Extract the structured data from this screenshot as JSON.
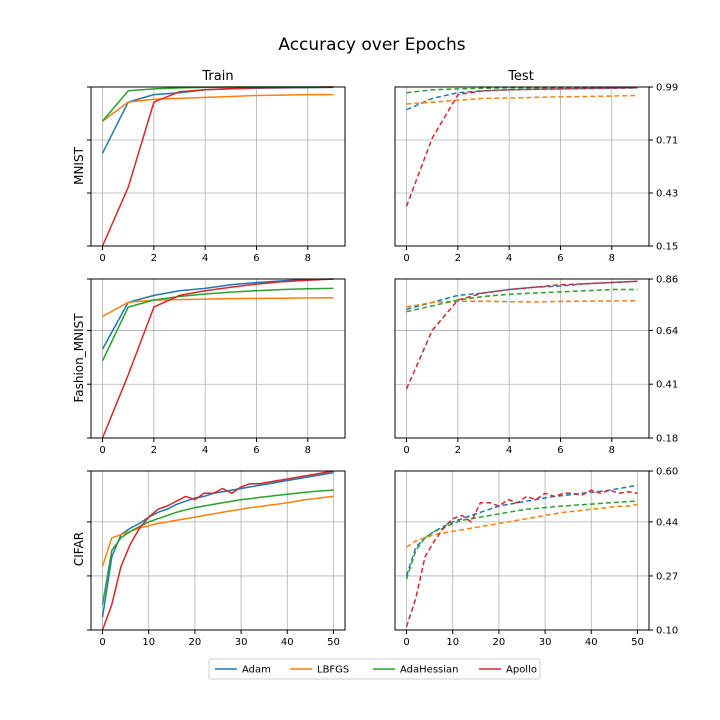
{
  "figure": {
    "title": "Accuracy over Epochs",
    "column_titles": [
      "Train",
      "Test"
    ],
    "row_labels": [
      "MNIST",
      "Fashion_MNIST",
      "CIFAR"
    ]
  },
  "legend": {
    "placement": "bottom-center",
    "entries": [
      {
        "name": "Adam",
        "color": "#1f77b4"
      },
      {
        "name": "LBFGS",
        "color": "#ff7f0e"
      },
      {
        "name": "AdaHessian",
        "color": "#2ca02c"
      },
      {
        "name": "Apollo",
        "color": "#d62728"
      }
    ]
  },
  "chart_data": [
    {
      "type": "line",
      "dataset": "MNIST",
      "split": "Train",
      "x": [
        0,
        1,
        2,
        3,
        4,
        5,
        6,
        7,
        8,
        9
      ],
      "xticks": [
        0,
        2,
        4,
        6,
        8
      ],
      "xlim": [
        -0.45,
        9.45
      ],
      "ylim": [
        0.15,
        0.99
      ],
      "yticks": [
        0.15,
        0.43,
        0.71,
        0.99
      ],
      "ytick_labels_shown": false,
      "grid": true,
      "line_style": "solid",
      "series": [
        {
          "name": "Adam",
          "values": [
            0.64,
            0.91,
            0.95,
            0.96,
            0.975,
            0.98,
            0.983,
            0.985,
            0.987,
            0.988
          ]
        },
        {
          "name": "LBFGS",
          "values": [
            0.81,
            0.91,
            0.925,
            0.93,
            0.935,
            0.94,
            0.945,
            0.947,
            0.95,
            0.95
          ]
        },
        {
          "name": "AdaHessian",
          "values": [
            0.81,
            0.97,
            0.98,
            0.985,
            0.988,
            0.99,
            0.99,
            0.99,
            0.99,
            0.99
          ]
        },
        {
          "name": "Apollo",
          "values": [
            0.15,
            0.46,
            0.91,
            0.965,
            0.975,
            0.982,
            0.985,
            0.987,
            0.988,
            0.99
          ]
        }
      ]
    },
    {
      "type": "line",
      "dataset": "MNIST",
      "split": "Test",
      "x": [
        0,
        1,
        2,
        3,
        4,
        5,
        6,
        7,
        8,
        9
      ],
      "xticks": [
        0,
        2,
        4,
        6,
        8
      ],
      "xlim": [
        -0.45,
        9.45
      ],
      "ylim": [
        0.15,
        0.99
      ],
      "yticks": [
        0.15,
        0.43,
        0.71,
        0.99
      ],
      "ytick_labels": [
        "0.15",
        "0.43",
        "0.71",
        "0.99"
      ],
      "ytick_side": "right",
      "grid": true,
      "line_style": "dashed",
      "series": [
        {
          "name": "Adam",
          "values": [
            0.87,
            0.93,
            0.96,
            0.97,
            0.975,
            0.978,
            0.98,
            0.982,
            0.983,
            0.985
          ]
        },
        {
          "name": "LBFGS",
          "values": [
            0.9,
            0.91,
            0.92,
            0.93,
            0.932,
            0.935,
            0.938,
            0.94,
            0.942,
            0.945
          ]
        },
        {
          "name": "AdaHessian",
          "values": [
            0.96,
            0.975,
            0.98,
            0.983,
            0.985,
            0.986,
            0.987,
            0.988,
            0.988,
            0.989
          ]
        },
        {
          "name": "Apollo",
          "values": [
            0.36,
            0.72,
            0.95,
            0.97,
            0.975,
            0.978,
            0.98,
            0.982,
            0.984,
            0.986
          ]
        }
      ]
    },
    {
      "type": "line",
      "dataset": "Fashion_MNIST",
      "split": "Train",
      "x": [
        0,
        1,
        2,
        3,
        4,
        5,
        6,
        7,
        8,
        9
      ],
      "xticks": [
        0,
        2,
        4,
        6,
        8
      ],
      "xlim": [
        -0.45,
        9.45
      ],
      "ylim": [
        0.18,
        0.86
      ],
      "yticks": [
        0.18,
        0.41,
        0.64,
        0.86
      ],
      "ytick_labels_shown": false,
      "grid": true,
      "line_style": "solid",
      "series": [
        {
          "name": "Adam",
          "values": [
            0.56,
            0.76,
            0.79,
            0.81,
            0.82,
            0.835,
            0.845,
            0.852,
            0.858,
            0.86
          ]
        },
        {
          "name": "LBFGS",
          "values": [
            0.7,
            0.76,
            0.77,
            0.772,
            0.774,
            0.776,
            0.777,
            0.778,
            0.779,
            0.78
          ]
        },
        {
          "name": "AdaHessian",
          "values": [
            0.51,
            0.74,
            0.77,
            0.785,
            0.796,
            0.804,
            0.81,
            0.815,
            0.818,
            0.82
          ]
        },
        {
          "name": "Apollo",
          "values": [
            0.18,
            0.45,
            0.74,
            0.79,
            0.81,
            0.825,
            0.838,
            0.848,
            0.855,
            0.86
          ]
        }
      ]
    },
    {
      "type": "line",
      "dataset": "Fashion_MNIST",
      "split": "Test",
      "x": [
        0,
        1,
        2,
        3,
        4,
        5,
        6,
        7,
        8,
        9
      ],
      "xticks": [
        0,
        2,
        4,
        6,
        8
      ],
      "xlim": [
        -0.45,
        9.45
      ],
      "ylim": [
        0.18,
        0.86
      ],
      "yticks": [
        0.18,
        0.41,
        0.64,
        0.86
      ],
      "ytick_labels": [
        "0.18",
        "0.41",
        "0.64",
        "0.86"
      ],
      "ytick_side": "right",
      "grid": true,
      "line_style": "dashed",
      "series": [
        {
          "name": "Adam",
          "values": [
            0.73,
            0.76,
            0.79,
            0.8,
            0.815,
            0.825,
            0.83,
            0.84,
            0.845,
            0.85
          ]
        },
        {
          "name": "LBFGS",
          "values": [
            0.74,
            0.76,
            0.765,
            0.765,
            0.763,
            0.762,
            0.764,
            0.765,
            0.766,
            0.767
          ]
        },
        {
          "name": "AdaHessian",
          "values": [
            0.72,
            0.745,
            0.77,
            0.785,
            0.795,
            0.8,
            0.805,
            0.81,
            0.815,
            0.815
          ]
        },
        {
          "name": "Apollo",
          "values": [
            0.39,
            0.64,
            0.77,
            0.8,
            0.815,
            0.825,
            0.835,
            0.84,
            0.845,
            0.85
          ]
        }
      ]
    },
    {
      "type": "line",
      "dataset": "CIFAR",
      "split": "Train",
      "x": [
        0,
        2,
        4,
        6,
        8,
        10,
        12,
        14,
        16,
        18,
        20,
        22,
        24,
        26,
        28,
        30,
        32,
        34,
        36,
        38,
        40,
        42,
        44,
        46,
        48,
        50
      ],
      "xticks": [
        0,
        10,
        20,
        30,
        40,
        50
      ],
      "xlim": [
        -2.5,
        52.5
      ],
      "ylim": [
        0.1,
        0.6
      ],
      "yticks": [
        0.1,
        0.27,
        0.44,
        0.6
      ],
      "ytick_labels_shown": false,
      "grid": true,
      "line_style": "solid",
      "series": [
        {
          "name": "Adam",
          "values": [
            0.14,
            0.33,
            0.4,
            0.42,
            0.435,
            0.455,
            0.47,
            0.48,
            0.495,
            0.505,
            0.515,
            0.52,
            0.53,
            0.535,
            0.54,
            0.545,
            0.55,
            0.555,
            0.56,
            0.565,
            0.57,
            0.575,
            0.58,
            0.585,
            0.59,
            0.595
          ]
        },
        {
          "name": "LBFGS",
          "values": [
            0.3,
            0.39,
            0.4,
            0.41,
            0.42,
            0.428,
            0.435,
            0.44,
            0.445,
            0.45,
            0.455,
            0.46,
            0.465,
            0.47,
            0.475,
            0.48,
            0.485,
            0.488,
            0.492,
            0.496,
            0.5,
            0.505,
            0.51,
            0.513,
            0.517,
            0.52
          ]
        },
        {
          "name": "AdaHessian",
          "values": [
            0.18,
            0.35,
            0.39,
            0.41,
            0.425,
            0.44,
            0.45,
            0.46,
            0.47,
            0.478,
            0.485,
            0.49,
            0.495,
            0.5,
            0.505,
            0.51,
            0.513,
            0.517,
            0.52,
            0.524,
            0.527,
            0.53,
            0.533,
            0.536,
            0.538,
            0.54
          ]
        },
        {
          "name": "Apollo",
          "values": [
            0.1,
            0.18,
            0.3,
            0.37,
            0.42,
            0.455,
            0.48,
            0.49,
            0.505,
            0.52,
            0.51,
            0.53,
            0.53,
            0.545,
            0.53,
            0.55,
            0.56,
            0.56,
            0.565,
            0.57,
            0.575,
            0.58,
            0.585,
            0.59,
            0.595,
            0.6
          ]
        }
      ]
    },
    {
      "type": "line",
      "dataset": "CIFAR",
      "split": "Test",
      "x": [
        0,
        2,
        4,
        6,
        8,
        10,
        12,
        14,
        16,
        18,
        20,
        22,
        24,
        26,
        28,
        30,
        32,
        34,
        36,
        38,
        40,
        42,
        44,
        46,
        48,
        50
      ],
      "xticks": [
        0,
        10,
        20,
        30,
        40,
        50
      ],
      "xlim": [
        -2.5,
        52.5
      ],
      "ylim": [
        0.1,
        0.6
      ],
      "yticks": [
        0.1,
        0.27,
        0.44,
        0.6
      ],
      "ytick_labels": [
        "0.10",
        "0.27",
        "0.44",
        "0.60"
      ],
      "ytick_side": "right",
      "grid": true,
      "line_style": "dashed",
      "series": [
        {
          "name": "Adam",
          "values": [
            0.27,
            0.36,
            0.39,
            0.41,
            0.425,
            0.44,
            0.45,
            0.46,
            0.47,
            0.48,
            0.49,
            0.495,
            0.5,
            0.505,
            0.51,
            0.515,
            0.52,
            0.523,
            0.526,
            0.53,
            0.533,
            0.536,
            0.54,
            0.545,
            0.55,
            0.555
          ]
        },
        {
          "name": "LBFGS",
          "values": [
            0.36,
            0.38,
            0.39,
            0.4,
            0.405,
            0.41,
            0.415,
            0.42,
            0.425,
            0.43,
            0.435,
            0.44,
            0.445,
            0.45,
            0.455,
            0.46,
            0.465,
            0.47,
            0.473,
            0.476,
            0.48,
            0.483,
            0.486,
            0.489,
            0.49,
            0.495
          ]
        },
        {
          "name": "AdaHessian",
          "values": [
            0.26,
            0.35,
            0.39,
            0.41,
            0.42,
            0.435,
            0.445,
            0.45,
            0.455,
            0.46,
            0.465,
            0.47,
            0.475,
            0.48,
            0.482,
            0.485,
            0.488,
            0.49,
            0.492,
            0.494,
            0.496,
            0.498,
            0.5,
            0.502,
            0.504,
            0.505
          ]
        },
        {
          "name": "Apollo",
          "values": [
            0.11,
            0.2,
            0.33,
            0.38,
            0.42,
            0.45,
            0.46,
            0.44,
            0.5,
            0.5,
            0.49,
            0.51,
            0.5,
            0.52,
            0.51,
            0.53,
            0.52,
            0.53,
            0.53,
            0.525,
            0.54,
            0.53,
            0.54,
            0.53,
            0.535,
            0.53
          ]
        }
      ]
    }
  ]
}
